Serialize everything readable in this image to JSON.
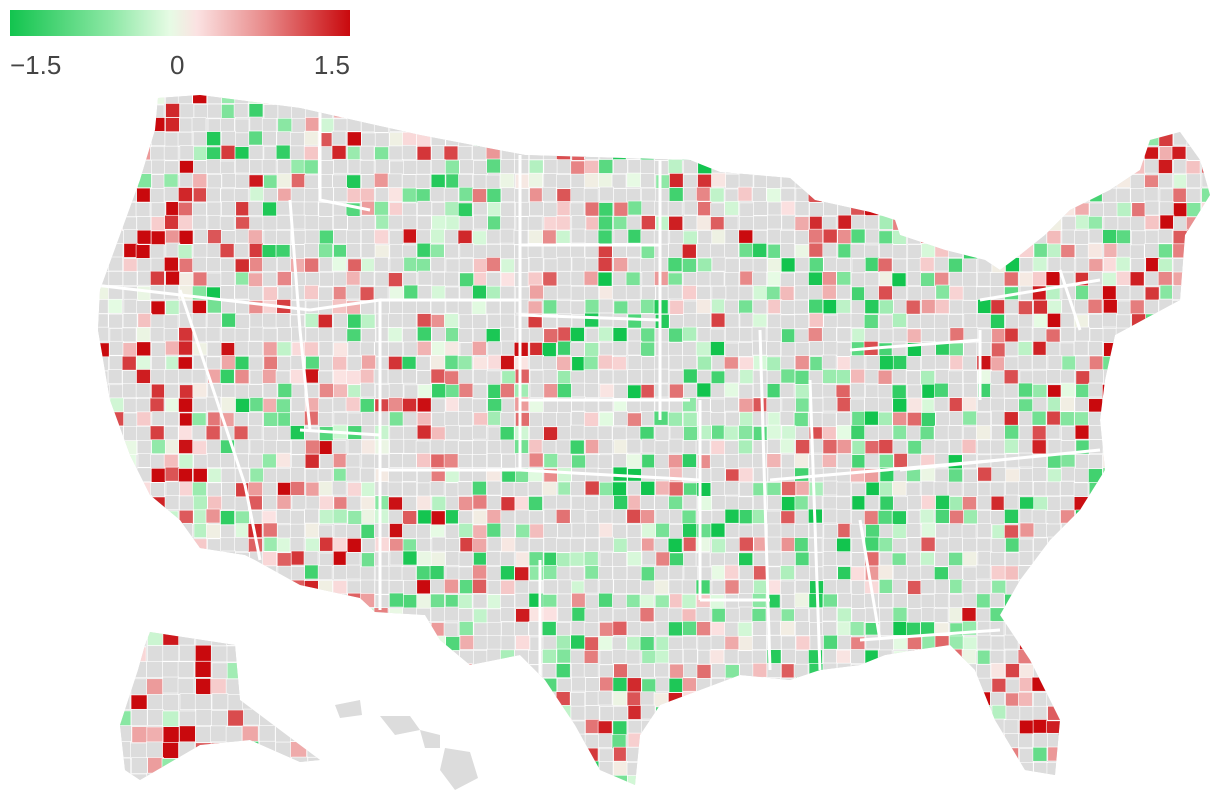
{
  "legend": {
    "min_label": "−1.5",
    "mid_label": "0",
    "max_label": "1.5",
    "min_value": -1.5,
    "mid_value": 0,
    "max_value": 1.5,
    "stops": [
      {
        "offset": 0.0,
        "color": "#12c44e"
      },
      {
        "offset": 0.3,
        "color": "#8ee8a6"
      },
      {
        "offset": 0.47,
        "color": "#e6fbe4"
      },
      {
        "offset": 0.55,
        "color": "#fbe2e2"
      },
      {
        "offset": 0.75,
        "color": "#e88a8a"
      },
      {
        "offset": 1.0,
        "color": "#c9090d"
      }
    ]
  },
  "colors": {
    "no_data": "#dcdcdc",
    "state_border": "#ffffff",
    "background": "#ffffff"
  }
}
